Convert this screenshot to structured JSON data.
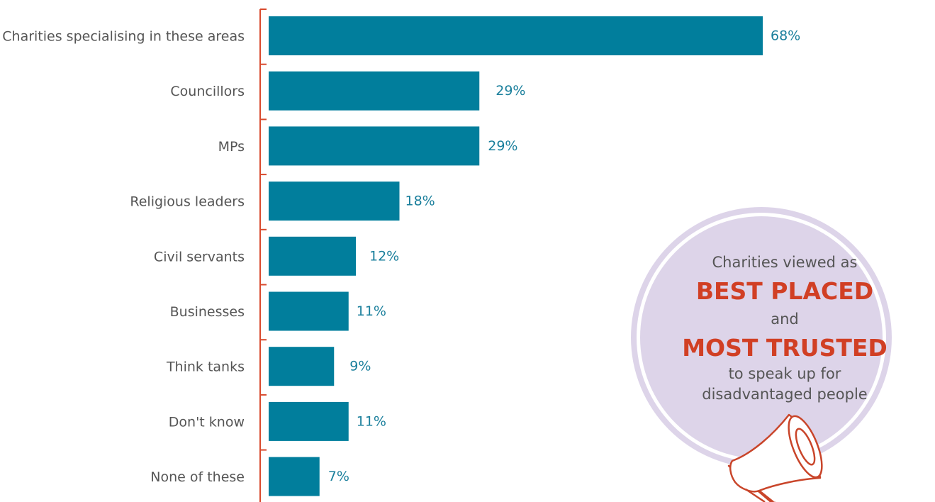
{
  "colors": {
    "bar": "#017e9c",
    "value_text": "#1a7f9c",
    "axis": "#d8492c",
    "circle_fill": "#ddd4e9",
    "circle_ring": "#ffffff",
    "circle_outer": "#ddd4e9",
    "emphasis": "#d13f24",
    "megaphone_fill": "#ffffff",
    "megaphone_stroke": "#c9452a"
  },
  "chart_data": {
    "type": "bar",
    "orientation": "horizontal",
    "categories": [
      "Charities specialising in these areas",
      "Councillors",
      "MPs",
      "Religious leaders",
      "Civil servants",
      "Businesses",
      "Think tanks",
      "Don't know",
      "None of these"
    ],
    "values": [
      68,
      29,
      29,
      18,
      12,
      11,
      9,
      11,
      7
    ],
    "value_labels": [
      "68%",
      "29%",
      "29%",
      "18%",
      "12%",
      "11%",
      "9%",
      "11%",
      "7%"
    ],
    "unit": "%",
    "title": "",
    "xlabel": "",
    "ylabel": "",
    "xlim": [
      0,
      100
    ],
    "grid": false,
    "legend": "none"
  },
  "callout": {
    "line1": "Charities viewed as",
    "emphasis1": "BEST PLACED",
    "line2": "and",
    "emphasis2": "MOST TRUSTED",
    "line3": "to speak up for",
    "line4": "disadvantaged people",
    "icon": "megaphone-icon"
  }
}
